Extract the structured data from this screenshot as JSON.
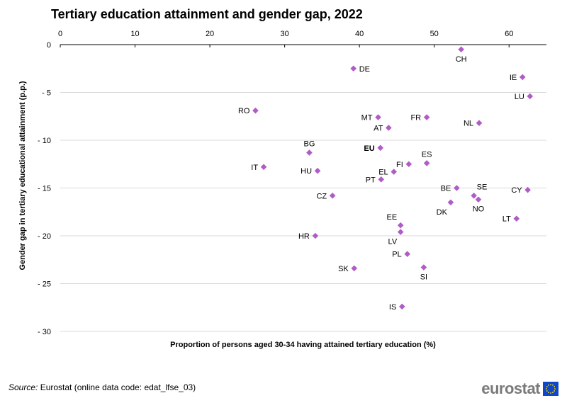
{
  "chart_data": {
    "type": "scatter",
    "title": "Tertiary education attainment and gender gap, 2022",
    "xlabel": "Proportion of persons aged 30-34 having attained tertiary education (%)",
    "ylabel": "Gender gap in tertiary educational attainment (p.p.)",
    "xlim": [
      0,
      65
    ],
    "ylim": [
      -30,
      0
    ],
    "xticks": [
      0,
      10,
      20,
      30,
      40,
      50,
      60
    ],
    "xtick_labels": [
      "0",
      "10",
      "20",
      "30",
      "40",
      "50",
      "60"
    ],
    "yticks": [
      0,
      -5,
      -10,
      -15,
      -20,
      -25,
      -30
    ],
    "ytick_labels": [
      "0",
      "- 5",
      "- 10",
      "- 15",
      "- 20",
      "- 25",
      "- 30"
    ],
    "grid": "horizontal",
    "marker_color": "#b05cc6",
    "points": [
      {
        "label": "CH",
        "x": 53.6,
        "y": -0.5,
        "pos": "below"
      },
      {
        "label": "DE",
        "x": 39.2,
        "y": -2.5,
        "pos": "right"
      },
      {
        "label": "IE",
        "x": 61.8,
        "y": -3.4,
        "pos": "left"
      },
      {
        "label": "LU",
        "x": 62.8,
        "y": -5.4,
        "pos": "left"
      },
      {
        "label": "RO",
        "x": 26.1,
        "y": -6.9,
        "pos": "left"
      },
      {
        "label": "MT",
        "x": 42.5,
        "y": -7.6,
        "pos": "left"
      },
      {
        "label": "FR",
        "x": 49.0,
        "y": -7.6,
        "pos": "left"
      },
      {
        "label": "AT",
        "x": 43.9,
        "y": -8.7,
        "pos": "left"
      },
      {
        "label": "NL",
        "x": 56.0,
        "y": -8.2,
        "pos": "left"
      },
      {
        "label": "BG",
        "x": 33.3,
        "y": -11.3,
        "pos": "above"
      },
      {
        "label": "EU",
        "x": 42.8,
        "y": -10.8,
        "pos": "left",
        "bold": true
      },
      {
        "label": "ES",
        "x": 49.0,
        "y": -12.4,
        "pos": "above"
      },
      {
        "label": "FI",
        "x": 46.6,
        "y": -12.5,
        "pos": "left"
      },
      {
        "label": "IT",
        "x": 27.2,
        "y": -12.8,
        "pos": "left"
      },
      {
        "label": "HU",
        "x": 34.4,
        "y": -13.2,
        "pos": "left"
      },
      {
        "label": "EL",
        "x": 44.6,
        "y": -13.3,
        "pos": "left"
      },
      {
        "label": "PT",
        "x": 42.9,
        "y": -14.1,
        "pos": "left"
      },
      {
        "label": "BE",
        "x": 53.0,
        "y": -15.0,
        "pos": "left"
      },
      {
        "label": "SE",
        "x": 55.3,
        "y": -15.8,
        "pos": "above-right"
      },
      {
        "label": "CY",
        "x": 62.5,
        "y": -15.2,
        "pos": "left"
      },
      {
        "label": "CZ",
        "x": 36.4,
        "y": -15.8,
        "pos": "left"
      },
      {
        "label": "NO",
        "x": 55.9,
        "y": -16.2,
        "pos": "below"
      },
      {
        "label": "DK",
        "x": 52.2,
        "y": -16.5,
        "pos": "below-left"
      },
      {
        "label": "LT",
        "x": 61.0,
        "y": -18.2,
        "pos": "left"
      },
      {
        "label": "EE",
        "x": 45.5,
        "y": -18.9,
        "pos": "above-left"
      },
      {
        "label": "LV",
        "x": 45.5,
        "y": -19.6,
        "pos": "below-left"
      },
      {
        "label": "HR",
        "x": 34.1,
        "y": -20.0,
        "pos": "left"
      },
      {
        "label": "PL",
        "x": 46.4,
        "y": -21.9,
        "pos": "left"
      },
      {
        "label": "SK",
        "x": 39.3,
        "y": -23.4,
        "pos": "left"
      },
      {
        "label": "SI",
        "x": 48.6,
        "y": -23.3,
        "pos": "below"
      },
      {
        "label": "IS",
        "x": 45.7,
        "y": -27.4,
        "pos": "left"
      }
    ]
  },
  "footer": {
    "source_label": "Source:",
    "source_text": " Eurostat (online data code: edat_lfse_03)",
    "logo_text": "eurostat"
  },
  "colors": {
    "flag_blue": "#0e47cb",
    "flag_star": "#ffde00",
    "grid": "#d9d9d9",
    "axis": "#000000"
  }
}
